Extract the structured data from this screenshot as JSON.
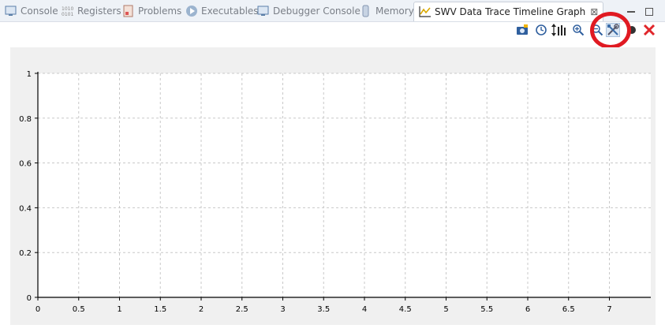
{
  "tabs": [
    {
      "label": "Console",
      "icon": "console-icon",
      "active": false
    },
    {
      "label": "Registers",
      "icon": "registers-icon",
      "active": false
    },
    {
      "label": "Problems",
      "icon": "problems-icon",
      "active": false
    },
    {
      "label": "Executables",
      "icon": "executables-icon",
      "active": false
    },
    {
      "label": "Debugger Console",
      "icon": "debugger-console-icon",
      "active": false
    },
    {
      "label": "Memory",
      "icon": "memory-icon",
      "active": false
    },
    {
      "label": "SWV Data Trace Timeline Graph",
      "icon": "graph-icon",
      "active": true
    }
  ],
  "toolbar": {
    "buttons": [
      {
        "name": "snapshot-camera-icon"
      },
      {
        "name": "clock-icon"
      },
      {
        "name": "adjust-y-axis-icon"
      },
      {
        "name": "zoom-in-icon"
      },
      {
        "name": "zoom-out-icon"
      },
      {
        "name": "configure-trace-icon"
      },
      {
        "name": "start-trace-icon"
      },
      {
        "name": "remove-icon"
      }
    ],
    "highlight_color": "#e01a22"
  },
  "chart_data": {
    "type": "line",
    "title": "",
    "xlabel": "",
    "ylabel": "",
    "series": [],
    "xlim": [
      0,
      7.5
    ],
    "ylim": [
      0,
      1
    ],
    "x_ticks": [
      "0",
      "0.5",
      "1",
      "1.5",
      "2",
      "2.5",
      "3",
      "3.5",
      "4",
      "4.5",
      "5",
      "5.5",
      "6",
      "6.5",
      "7"
    ],
    "y_ticks": [
      "0",
      "0.2",
      "0.4",
      "0.6",
      "0.8",
      "1"
    ],
    "grid": true
  }
}
